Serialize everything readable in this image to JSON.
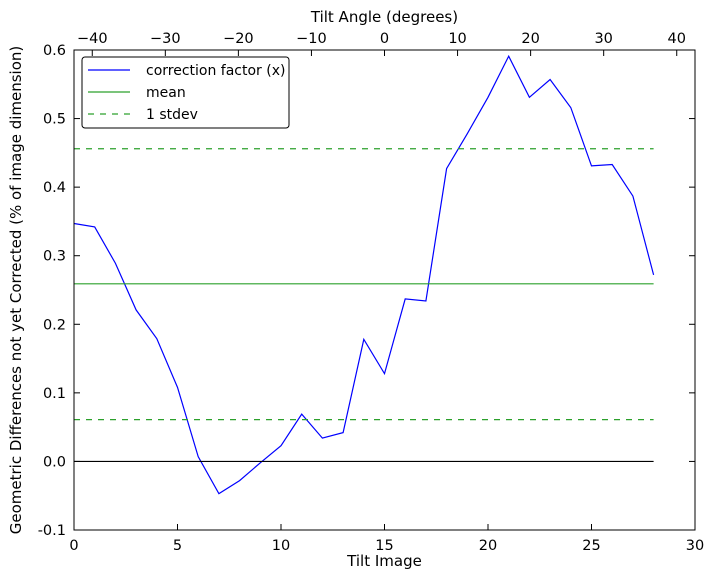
{
  "chart_data": {
    "type": "line",
    "xlabel": "Tilt Image",
    "ylabel": "Geometric Differences not yet Corrected (% of image dimension)",
    "top_xlabel": "Tilt Angle (degrees)",
    "xlim": [
      0,
      30
    ],
    "ylim": [
      -0.1,
      0.6
    ],
    "top_xlim": [
      -42.5,
      42.5
    ],
    "x_ticks": [
      0,
      5,
      10,
      15,
      20,
      25,
      30
    ],
    "y_ticks": [
      -0.1,
      0.0,
      0.1,
      0.2,
      0.3,
      0.4,
      0.5,
      0.6
    ],
    "top_ticks": [
      -40,
      -30,
      -20,
      -10,
      0,
      10,
      20,
      30,
      40
    ],
    "grid": false,
    "legend_position": "top-left",
    "series": [
      {
        "name": "correction factor (x)",
        "color": "#0000ff",
        "style": "solid",
        "x": [
          0,
          1,
          2,
          3,
          4,
          5,
          6,
          7,
          8,
          9,
          10,
          11,
          12,
          13,
          14,
          15,
          16,
          17,
          18,
          19,
          20,
          21,
          22,
          23,
          24,
          25,
          26,
          27,
          28
        ],
        "y": [
          0.347,
          0.342,
          0.289,
          0.221,
          0.179,
          0.108,
          0.007,
          -0.047,
          -0.028,
          -0.002,
          0.023,
          0.069,
          0.034,
          0.042,
          0.178,
          0.128,
          0.237,
          0.234,
          0.427,
          0.478,
          0.531,
          0.591,
          0.531,
          0.557,
          0.516,
          0.431,
          0.433,
          0.387,
          0.272
        ]
      },
      {
        "name": "mean",
        "color": "#2ca02c",
        "style": "solid",
        "x": [
          0,
          28
        ],
        "y": [
          0.259,
          0.259
        ]
      },
      {
        "name": "1 stdev",
        "color": "#2ca02c",
        "style": "dashed",
        "x": [
          0,
          28
        ],
        "y": [
          0.456,
          0.456
        ]
      },
      {
        "name": "",
        "color": "#2ca02c",
        "style": "dashed",
        "x": [
          0,
          28
        ],
        "y": [
          0.061,
          0.061
        ]
      },
      {
        "name": "",
        "color": "#000000",
        "style": "solid",
        "x": [
          0,
          28
        ],
        "y": [
          0.0,
          0.0
        ]
      }
    ]
  }
}
